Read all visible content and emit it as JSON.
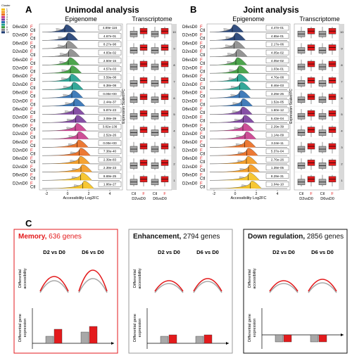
{
  "figure": {
    "panel_a": {
      "letter": "A",
      "title": "Unimodal analysis",
      "epigenome_label": "Epigenome",
      "transcriptome_label": "Transcriptome",
      "x_axis_label": "Accessibility Log2FC",
      "x_ticks": [
        "-2",
        "0",
        "2",
        "4"
      ],
      "y_axis_label": "Expression Scaled FC",
      "pvalues": [
        "4.89e-116",
        "4.67e-01",
        "8.27e-98",
        "4.83e-02",
        "2.50e-15",
        "4.57e-03",
        "3.59e-08",
        "6.38e-08",
        "0.00e+00",
        "2.44e-37",
        "5.87e-23",
        "3.08e-39",
        "3.82e-136",
        "2.52e-26",
        "0.00e+00",
        "7.38e-40",
        "2.39e-83",
        "2.39e-23",
        "8.69e-25",
        "1.86e-27"
      ],
      "bottom_x": [
        "Ctl",
        "F",
        "Ctl",
        "F"
      ],
      "bottom_groups": [
        "D2vsD0",
        "D6vsD0"
      ]
    },
    "panel_b": {
      "letter": "B",
      "title": "Joint analysis",
      "epigenome_label": "Epigenome",
      "transcriptome_label": "Transcriptome",
      "x_axis_label": "Accessibility Log2FC",
      "x_ticks": [
        "-2",
        "0",
        "2",
        "4"
      ],
      "y_axis_label": "Expression Scaled FC",
      "pvalues": [
        "4.47e-01",
        "4.65e-01",
        "2.17e-06",
        "4.05e-02",
        "4.05e-02",
        "1.03e-01",
        "4.76e-08",
        "8.46e-03",
        "3.29e-25",
        "1.52e-05",
        "1.60e-12",
        "5.43e-04",
        "2.29e-39",
        "1.14e-09",
        "3.34e-11",
        "5.37e-04",
        "2.76e-26",
        "1.39e-05",
        "8.29e-31",
        "1.04e-10"
      ],
      "bottom_x": [
        "Ctl",
        "F",
        "Ctl",
        "F"
      ],
      "bottom_groups": [
        "D2vsD0",
        "D6vsD0"
      ]
    },
    "row_labels": [
      "D6vsD0",
      "D2vsD0"
    ],
    "row_sublabels": [
      "F",
      "Ctl"
    ],
    "legend": {
      "title": "Cluster",
      "items": [
        "1",
        "2",
        "3",
        "4",
        "5",
        "6",
        "7",
        "8",
        "9",
        "10"
      ]
    },
    "cluster_strip_a": [
      "10",
      "9",
      "8",
      "7",
      "6",
      "5",
      "4",
      "3",
      "2",
      "1"
    ],
    "cluster_strip_b": [
      "10",
      "9",
      "8",
      "7",
      "6",
      "5",
      "4",
      "3",
      "2",
      "1"
    ],
    "panel_c": {
      "letter": "C",
      "boxes": [
        {
          "bold": "Memory,",
          "rest": " 636 genes",
          "d2": "D2 vs D0",
          "d6": "D6 vs D0",
          "ylab1a": "Differential",
          "ylab1b": "accessibility",
          "ylab2a": "Differential gene",
          "ylab2b": "expression"
        },
        {
          "bold": "Enhancement,",
          "rest": " 2794 genes",
          "d2": "D2 vs D0",
          "d6": "D6 vs D0",
          "ylab1a": "Differential",
          "ylab1b": "accessibility",
          "ylab2a": "Differential gene",
          "ylab2b": "expression"
        },
        {
          "bold": "Down regulation,",
          "rest": " 2856 genes",
          "d2": "D2 vs D0",
          "d6": "D6 vs D0",
          "ylab1a": "Differential",
          "ylab1b": "accessibility",
          "ylab2a": "Differential gene",
          "ylab2b": "expression"
        }
      ]
    },
    "colors": {
      "red": "#e31a1c",
      "gray": "#a8a8a8",
      "memory_border": "#e31a1c",
      "enh_border": "#9a9a9a",
      "down_border": "#111111",
      "cluster_colors": [
        "#f7c21d",
        "#f59a1c",
        "#ea6b1f",
        "#c93c8c",
        "#7a3e9d",
        "#2e6fb3",
        "#1e9f8f",
        "#3a9c3a",
        "#8a8a8a",
        "#1d3c73"
      ]
    }
  }
}
